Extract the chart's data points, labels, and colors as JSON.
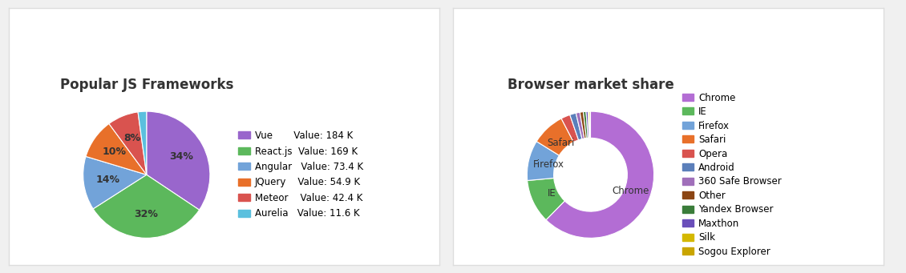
{
  "chart1": {
    "title": "Popular JS Frameworks",
    "labels": [
      "Vue",
      "React.js",
      "Angular",
      "JQuery",
      "Meteor",
      "Aurelia"
    ],
    "values": [
      184,
      169,
      73.4,
      54.9,
      42.4,
      11.6
    ],
    "colors": [
      "#9966cc",
      "#5cb85c",
      "#72a3d9",
      "#e8702a",
      "#d9534f",
      "#5bc0de"
    ],
    "legend_values": [
      "184 K",
      "169 K",
      "73.4 K",
      "54.9 K",
      "42.4 K",
      "11.6 K"
    ]
  },
  "chart2": {
    "title": "Browser market share",
    "labels": [
      "Chrome",
      "IE",
      "Firefox",
      "Safari",
      "Opera",
      "Android",
      "360 Safe Browser",
      "Other",
      "Yandex Browser",
      "Maxthon",
      "Silk",
      "Sogou Explorer"
    ],
    "values": [
      61.41,
      11.0,
      10.12,
      8.45,
      2.3,
      1.56,
      1.0,
      0.85,
      0.68,
      0.5,
      0.32,
      0.28
    ],
    "colors": [
      "#b36dd4",
      "#5cb85c",
      "#72a3d9",
      "#e8702a",
      "#d9534f",
      "#5b7fba",
      "#a06fba",
      "#8B4513",
      "#3a7d3a",
      "#6a4fba",
      "#d4b800",
      "#c9a500"
    ],
    "donut_labels": {
      "0": "Chrome",
      "1": "IE",
      "2": "Firefox",
      "3": "Safari"
    }
  },
  "bg_color": "#f0f0f0",
  "panel_bg": "#ffffff",
  "border_color": "#dddddd",
  "title_fontsize": 12,
  "legend_fontsize": 8.5
}
